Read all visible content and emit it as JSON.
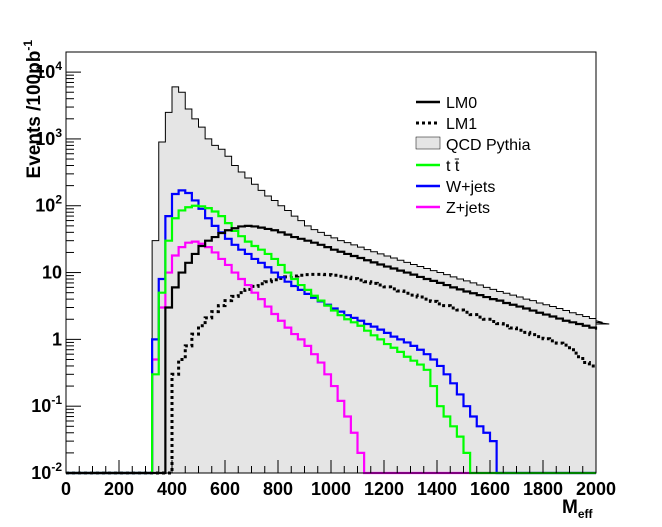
{
  "chart_data": {
    "type": "step-histogram",
    "xlabel": "M",
    "xlabel_sub": "eff",
    "ylabel": "Events /100pb",
    "ylabel_sup": "-1",
    "xlim": [
      0,
      2000
    ],
    "ylim": [
      0.01,
      20000
    ],
    "ylog": true,
    "grid": false,
    "legend_position": "top-right",
    "x_ticks": [
      "0",
      "200",
      "400",
      "600",
      "800",
      "1000",
      "1200",
      "1400",
      "1600",
      "1800",
      "2000"
    ],
    "y_ticks": [
      {
        "value": 0.01,
        "base": "10",
        "exp": "-2"
      },
      {
        "value": 0.1,
        "base": "10",
        "exp": "-1"
      },
      {
        "value": 1,
        "base": "1",
        "exp": ""
      },
      {
        "value": 10,
        "base": "10",
        "exp": ""
      },
      {
        "value": 100,
        "base": "10",
        "exp": "2"
      },
      {
        "value": 1000,
        "base": "10",
        "exp": "3"
      },
      {
        "value": 10000,
        "base": "10",
        "exp": "4"
      }
    ],
    "bin_edges_start": 0,
    "bin_width": 25,
    "floor_value": 0.01,
    "series": [
      {
        "name": "LM0",
        "color": "#000000",
        "style": "solid",
        "start": 375,
        "values": [
          3,
          6,
          10,
          14,
          19,
          25,
          30,
          34,
          39,
          43,
          46,
          49,
          50,
          49,
          47,
          45,
          43,
          40,
          37,
          34,
          32,
          30,
          28,
          26,
          24,
          22,
          20.5,
          19,
          17.7,
          16.5,
          15.3,
          14.2,
          13.2,
          12.3,
          11.5,
          10.7,
          10,
          9.3,
          8.6,
          8,
          7.5,
          7,
          6.5,
          6,
          5.6,
          5.2,
          4.9,
          4.6,
          4.3,
          4,
          3.8,
          3.5,
          3.3,
          3.1,
          2.9,
          2.7,
          2.5,
          2.35,
          2.2,
          2.05,
          1.9,
          1.8,
          1.7,
          1.6,
          1.5,
          1.4
        ]
      },
      {
        "name": "LM1",
        "color": "#000000",
        "style": "dotted",
        "start": 400,
        "values": [
          0.3,
          0.5,
          0.8,
          1.2,
          1.6,
          2.1,
          2.6,
          3.2,
          3.8,
          4.4,
          5,
          5.6,
          6.2,
          6.8,
          7.3,
          7.8,
          8.2,
          8.6,
          8.9,
          9.1,
          9.3,
          9.4,
          9.4,
          9.3,
          9.1,
          8.8,
          8.5,
          8.1,
          7.7,
          7.3,
          6.9,
          6.5,
          6.1,
          5.7,
          5.3,
          4.9,
          4.6,
          4.3,
          4,
          3.7,
          3.4,
          3.2,
          2.95,
          2.75,
          2.55,
          2.35,
          2.15,
          2,
          1.85,
          1.72,
          1.6,
          1.48,
          1.37,
          1.27,
          1.18,
          1.1,
          1.02,
          0.95,
          0.88,
          0.82,
          0.7,
          0.55,
          0.45,
          0.4
        ]
      },
      {
        "name": "QCD Pythia",
        "color": "#000000",
        "style": "filled",
        "fill": "#e5e5e5",
        "start": 325,
        "values": [
          30,
          900,
          2500,
          6000,
          5000,
          2800,
          2000,
          1500,
          1000,
          800,
          700,
          550,
          400,
          320,
          260,
          210,
          170,
          140,
          120,
          100,
          85,
          70,
          60,
          50,
          44,
          40,
          36,
          33,
          30,
          28,
          26,
          24,
          22,
          20.5,
          19,
          17.7,
          16.5,
          15.3,
          14.2,
          13.2,
          12.3,
          11.5,
          10.7,
          10,
          9.3,
          8.6,
          8,
          7.5,
          7,
          6.5,
          6,
          5.6,
          5.2,
          4.9,
          4.6,
          4.3,
          4,
          3.8,
          3.5,
          3.3,
          3.1,
          2.9,
          2.7,
          2.5,
          2.35,
          2.2,
          2.05,
          1.9,
          1.8,
          1.7
        ]
      },
      {
        "name": "t t̄",
        "color": "#00ff00",
        "style": "solid",
        "start": 325,
        "values": [
          0.3,
          5,
          30,
          65,
          85,
          95,
          100,
          98,
          92,
          82,
          70,
          55,
          42,
          35,
          29,
          25,
          22,
          19,
          16,
          13,
          10,
          8,
          6.5,
          5.5,
          4.5,
          3.8,
          3.2,
          2.7,
          2.3,
          2,
          1.8,
          1.6,
          1.35,
          1.15,
          1.0,
          0.85,
          0.75,
          0.65,
          0.55,
          0.48,
          0.42,
          0.35,
          0.2,
          0.1,
          0.07,
          0.05,
          0.035,
          0.02,
          0.01,
          0.01,
          0.01,
          0.01
        ]
      },
      {
        "name": "W+jets",
        "color": "#0000ff",
        "style": "solid",
        "start": 325,
        "values": [
          1,
          8,
          70,
          150,
          170,
          155,
          120,
          90,
          65,
          50,
          40,
          32,
          26,
          22,
          19,
          16,
          14,
          12,
          10,
          8.5,
          7.3,
          6.3,
          5.5,
          4.8,
          4.2,
          3.7,
          3.3,
          2.9,
          2.6,
          2.3,
          2.1,
          1.9,
          1.7,
          1.55,
          1.4,
          1.25,
          1.1,
          1.0,
          0.9,
          0.8,
          0.7,
          0.6,
          0.5,
          0.4,
          0.3,
          0.22,
          0.15,
          0.1,
          0.07,
          0.05,
          0.04,
          0.03
        ]
      },
      {
        "name": "Z+jets",
        "color": "#ff00ff",
        "style": "solid",
        "start": 325,
        "values": [
          0.5,
          3,
          10,
          18,
          24,
          28,
          29,
          27,
          24,
          20,
          16,
          13,
          10,
          8,
          6.5,
          5,
          4,
          3.1,
          2.4,
          1.9,
          1.5,
          1.2,
          1,
          0.8,
          0.6,
          0.45,
          0.3,
          0.2,
          0.12,
          0.07,
          0.04,
          0.02,
          0.01,
          0.01
        ]
      }
    ]
  }
}
